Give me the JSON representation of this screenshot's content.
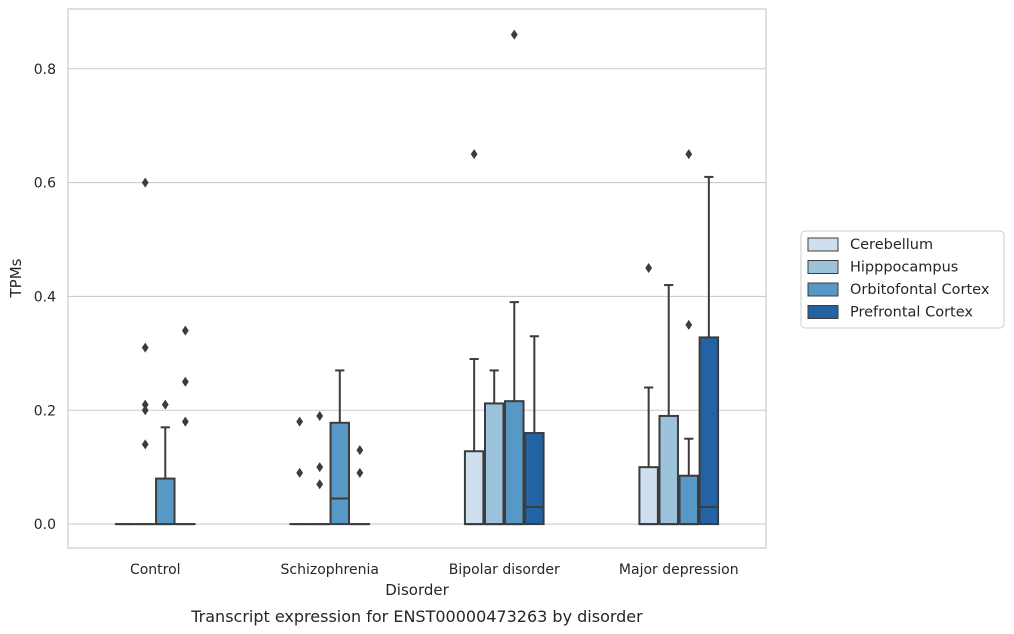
{
  "chart_data": {
    "type": "box",
    "title": "Transcript expression for ENST00000473263 by disorder",
    "xlabel": "Disorder",
    "ylabel": "TPMs",
    "ylim": [
      -0.042,
      0.905
    ],
    "yticks": [
      "0.0",
      "0.2",
      "0.4",
      "0.6",
      "0.8"
    ],
    "categories": [
      "Control",
      "Schizophrenia",
      "Bipolar disorder",
      "Major depression"
    ],
    "grid": "horizontal",
    "legend_position": "right",
    "series": [
      {
        "name": "Cerebellum",
        "color": "#d0dff0",
        "boxes": [
          {
            "q1": 0,
            "median": 0,
            "q3": 0,
            "whisker_low": 0,
            "whisker_high": 0,
            "outliers": []
          },
          {
            "q1": 0,
            "median": 0,
            "q3": 0,
            "whisker_low": 0,
            "whisker_high": 0,
            "outliers": [
              0.18,
              0.09
            ]
          },
          {
            "q1": 0,
            "median": 0,
            "q3": 0.128,
            "whisker_low": 0,
            "whisker_high": 0.29,
            "outliers": [
              0.65
            ]
          },
          {
            "q1": 0,
            "median": 0,
            "q3": 0.1,
            "whisker_low": 0,
            "whisker_high": 0.24,
            "outliers": [
              0.45
            ]
          }
        ]
      },
      {
        "name": "Hipppocampus",
        "color": "#9cc2dc",
        "boxes": [
          {
            "q1": 0,
            "median": 0,
            "q3": 0,
            "whisker_low": 0,
            "whisker_high": 0,
            "outliers": [
              0.6,
              0.31,
              0.21,
              0.2,
              0.14
            ]
          },
          {
            "q1": 0,
            "median": 0,
            "q3": 0,
            "whisker_low": 0,
            "whisker_high": 0,
            "outliers": [
              0.19,
              0.1,
              0.07
            ]
          },
          {
            "q1": 0,
            "median": 0,
            "q3": 0.212,
            "whisker_low": 0,
            "whisker_high": 0.27,
            "outliers": []
          },
          {
            "q1": 0,
            "median": 0,
            "q3": 0.19,
            "whisker_low": 0,
            "whisker_high": 0.42,
            "outliers": []
          }
        ]
      },
      {
        "name": "Orbitofontal Cortex",
        "color": "#5798c6",
        "boxes": [
          {
            "q1": 0,
            "median": 0,
            "q3": 0.08,
            "whisker_low": 0,
            "whisker_high": 0.17,
            "outliers": [
              0.21
            ]
          },
          {
            "q1": 0,
            "median": 0.045,
            "q3": 0.178,
            "whisker_low": 0,
            "whisker_high": 0.27,
            "outliers": []
          },
          {
            "q1": 0,
            "median": 0,
            "q3": 0.216,
            "whisker_low": 0,
            "whisker_high": 0.39,
            "outliers": [
              0.86
            ]
          },
          {
            "q1": 0,
            "median": 0,
            "q3": 0.085,
            "whisker_low": 0,
            "whisker_high": 0.15,
            "outliers": [
              0.65,
              0.35
            ]
          }
        ]
      },
      {
        "name": "Prefrontal Cortex",
        "color": "#2363a3",
        "boxes": [
          {
            "q1": 0,
            "median": 0,
            "q3": 0,
            "whisker_low": 0,
            "whisker_high": 0,
            "outliers": [
              0.34,
              0.25,
              0.18
            ]
          },
          {
            "q1": 0,
            "median": 0,
            "q3": 0,
            "whisker_low": 0,
            "whisker_high": 0,
            "outliers": [
              0.13,
              0.09
            ]
          },
          {
            "q1": 0,
            "median": 0.03,
            "q3": 0.16,
            "whisker_low": 0,
            "whisker_high": 0.33,
            "outliers": []
          },
          {
            "q1": 0,
            "median": 0.03,
            "q3": 0.328,
            "whisker_low": 0,
            "whisker_high": 0.61,
            "outliers": []
          }
        ]
      }
    ]
  }
}
